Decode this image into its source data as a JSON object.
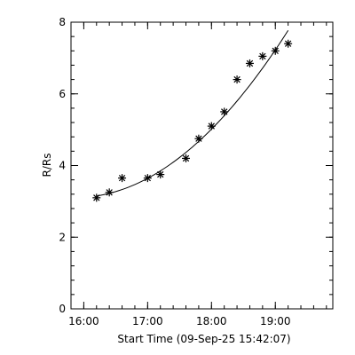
{
  "chart_data": {
    "type": "scatter",
    "title": "",
    "xlabel": "Start Time (09-Sep-25 15:42:07)",
    "ylabel": "R/Rs",
    "x_units": "hours",
    "xlim": [
      15.8,
      19.9
    ],
    "ylim": [
      0,
      8
    ],
    "x_ticks": [
      {
        "value": 16.0,
        "label": "16:00"
      },
      {
        "value": 17.0,
        "label": "17:00"
      },
      {
        "value": 18.0,
        "label": "18:00"
      },
      {
        "value": 19.0,
        "label": "19:00"
      }
    ],
    "y_ticks": [
      0,
      2,
      4,
      6,
      8
    ],
    "grid": false,
    "series": [
      {
        "marker": "asterisk",
        "points": [
          {
            "x": 16.2,
            "y": 3.1
          },
          {
            "x": 16.4,
            "y": 3.25
          },
          {
            "x": 16.6,
            "y": 3.65
          },
          {
            "x": 17.0,
            "y": 3.65
          },
          {
            "x": 17.2,
            "y": 3.75
          },
          {
            "x": 17.6,
            "y": 4.2
          },
          {
            "x": 17.8,
            "y": 4.75
          },
          {
            "x": 18.0,
            "y": 5.1
          },
          {
            "x": 18.2,
            "y": 5.5
          },
          {
            "x": 18.4,
            "y": 6.4
          },
          {
            "x": 18.6,
            "y": 6.85
          },
          {
            "x": 18.8,
            "y": 7.05
          },
          {
            "x": 19.0,
            "y": 7.2
          },
          {
            "x": 19.2,
            "y": 7.4
          }
        ]
      },
      {
        "style": "line",
        "fit": {
          "type": "quadratic",
          "x0": 16.2,
          "coeffs": [
            3.15,
            0.28,
            0.42
          ]
        },
        "x_range": [
          16.2,
          19.2
        ]
      }
    ]
  }
}
